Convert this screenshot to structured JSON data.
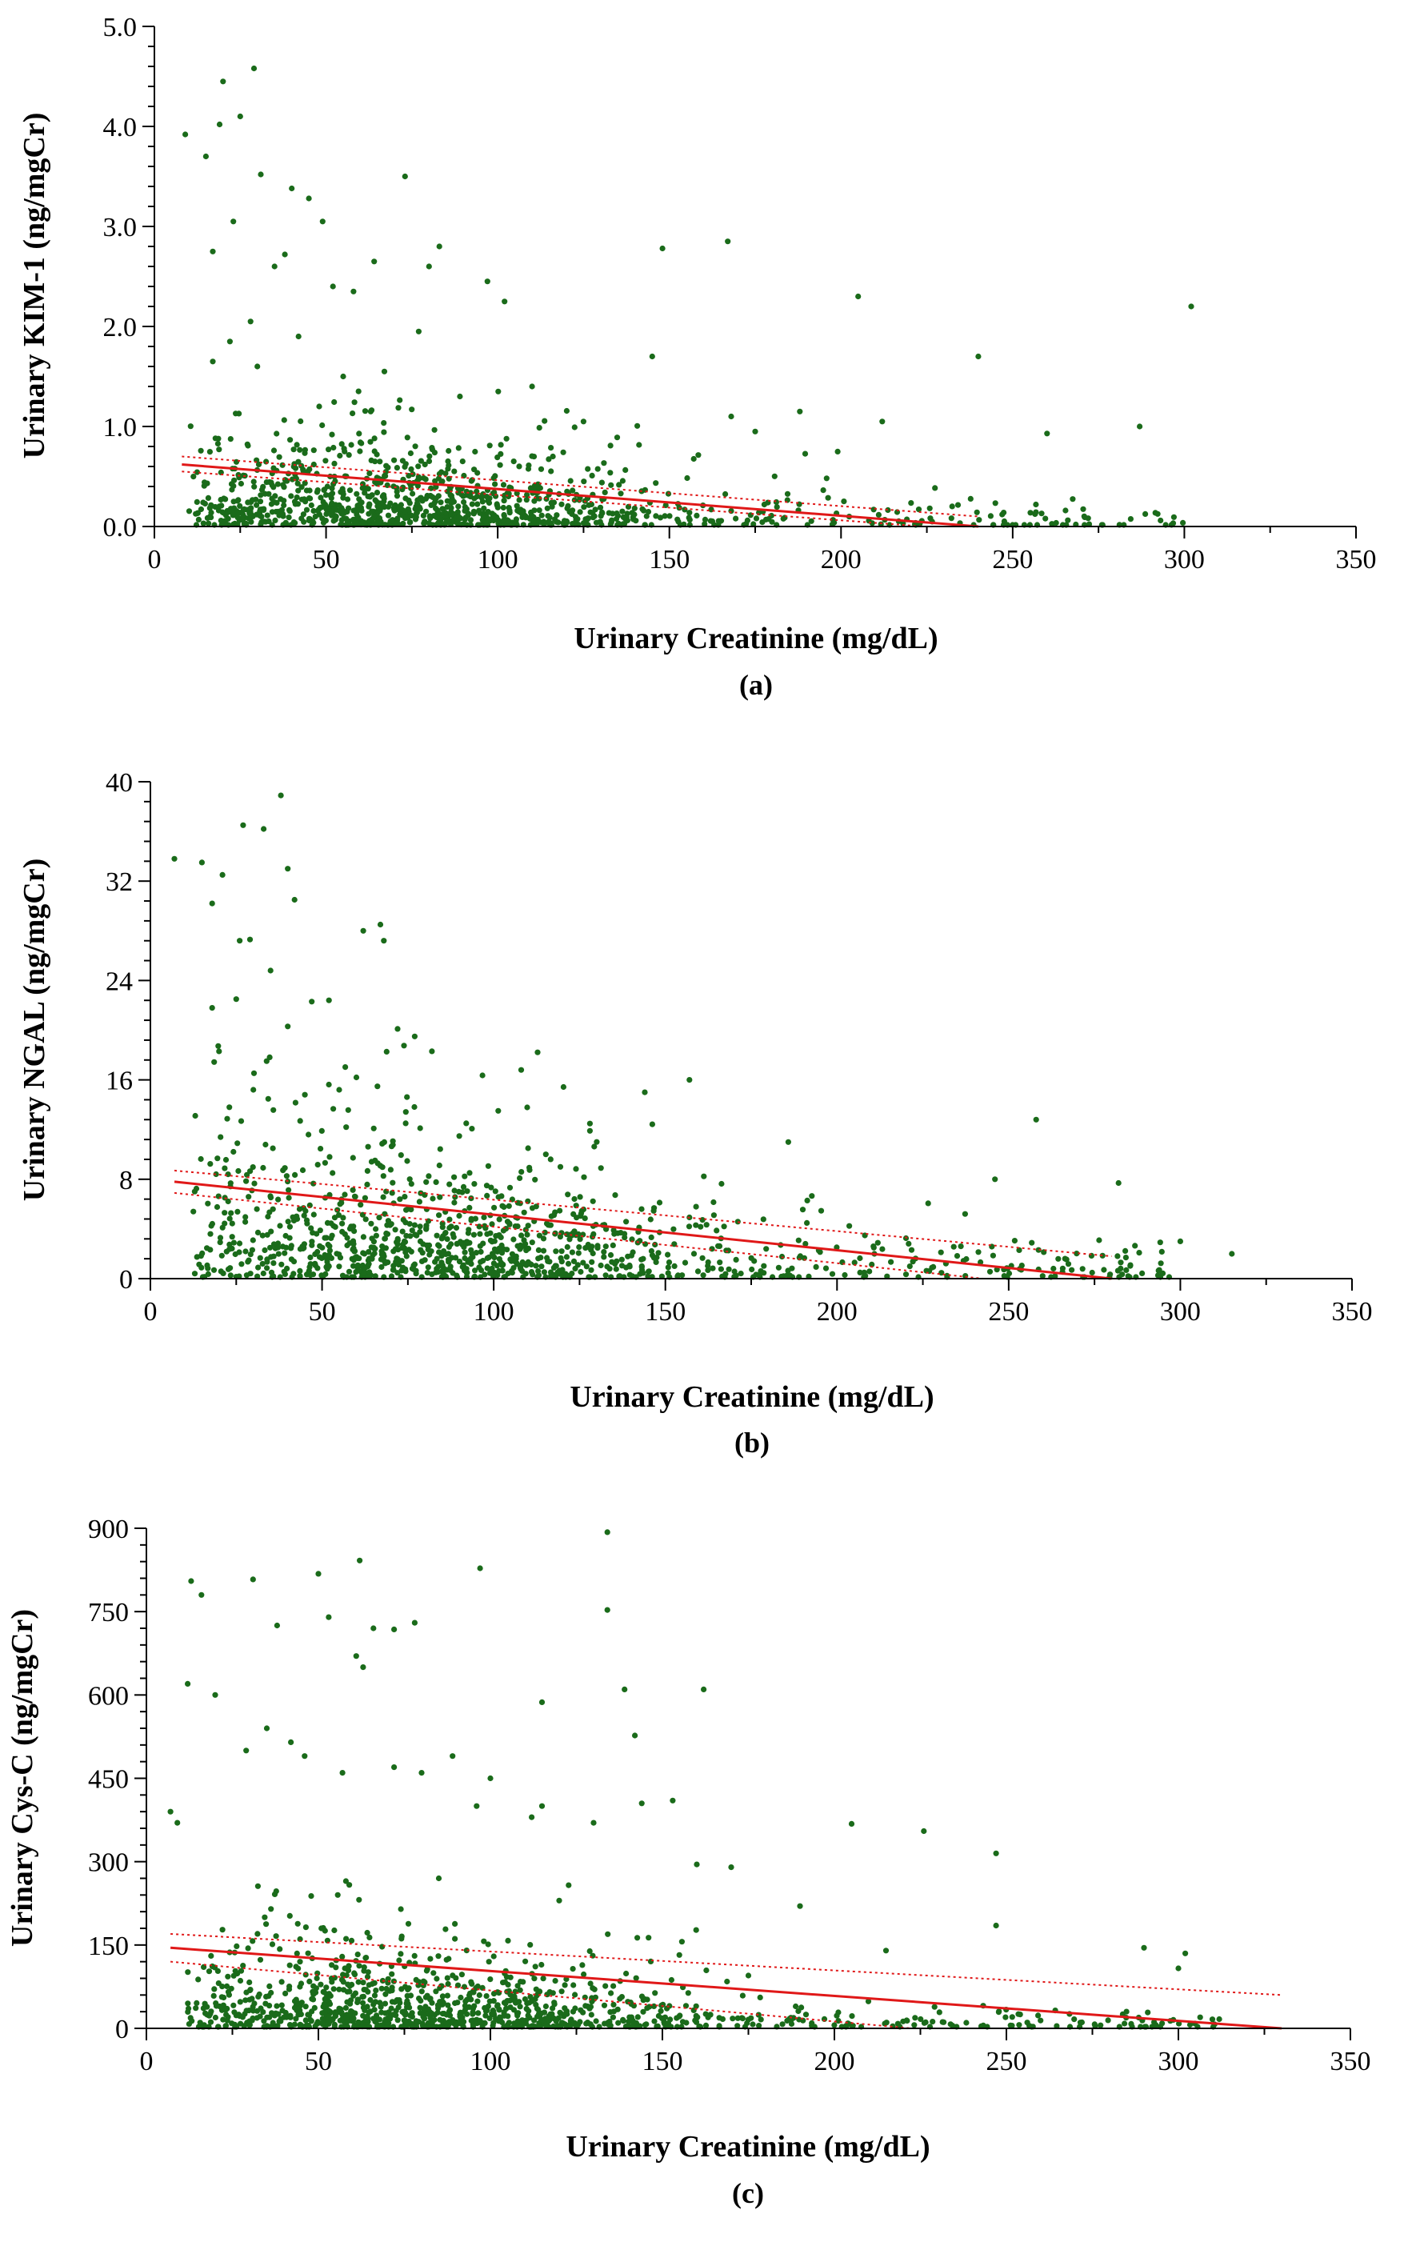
{
  "figure": {
    "panels": [
      {
        "label": "(a)"
      },
      {
        "label": "(b)"
      },
      {
        "label": "(c)"
      }
    ]
  },
  "colors": {
    "point": "#1a6b1a",
    "fit_line": "#e01818",
    "ci_line": "#e01818",
    "axis": "#000000"
  },
  "chart_data": [
    {
      "type": "scatter",
      "panel": "(a)",
      "title": "",
      "xlabel": "Urinary Creatinine (mg/dL)",
      "ylabel": "Urinary KIM-1 (ng/mgCr)",
      "xlim": [
        0,
        350
      ],
      "ylim": [
        0,
        5
      ],
      "xticks": [
        0,
        50,
        100,
        150,
        200,
        250,
        300,
        350
      ],
      "yticks": [
        0.0,
        1.0,
        2.0,
        3.0,
        4.0,
        5.0
      ],
      "xtick_labels": [
        "0",
        "50",
        "100",
        "150",
        "200",
        "250",
        "300",
        "350"
      ],
      "ytick_labels": [
        "0.0",
        "1.0",
        "2.0",
        "3.0",
        "4.0",
        "5.0"
      ],
      "points": [
        [
          9,
          3.92
        ],
        [
          15,
          3.7
        ],
        [
          20,
          4.45
        ],
        [
          19,
          4.02
        ],
        [
          25,
          4.1
        ],
        [
          29,
          4.58
        ],
        [
          31,
          3.52
        ],
        [
          17,
          2.75
        ],
        [
          23,
          3.05
        ],
        [
          40,
          3.38
        ],
        [
          45,
          3.28
        ],
        [
          49,
          3.05
        ],
        [
          73,
          3.5
        ],
        [
          83,
          2.8
        ],
        [
          102,
          2.25
        ],
        [
          145,
          1.7
        ],
        [
          148,
          2.78
        ],
        [
          167,
          2.85
        ],
        [
          205,
          2.3
        ],
        [
          240,
          1.7
        ],
        [
          302,
          2.2
        ],
        [
          260,
          0.93
        ],
        [
          287,
          1.0
        ],
        [
          212,
          1.05
        ],
        [
          188,
          1.15
        ],
        [
          175,
          0.95
        ],
        [
          168,
          1.1
        ],
        [
          125,
          1.05
        ],
        [
          110,
          1.4
        ],
        [
          97,
          2.45
        ],
        [
          80,
          2.6
        ],
        [
          64,
          2.65
        ],
        [
          58,
          2.35
        ],
        [
          52,
          2.4
        ],
        [
          38,
          2.72
        ],
        [
          35,
          2.6
        ],
        [
          28,
          2.05
        ],
        [
          22,
          1.85
        ],
        [
          17,
          1.65
        ],
        [
          30,
          1.6
        ],
        [
          42,
          1.9
        ],
        [
          55,
          1.5
        ],
        [
          67,
          1.55
        ],
        [
          77,
          1.95
        ],
        [
          89,
          1.3
        ],
        [
          63,
          1.15
        ],
        [
          48,
          1.2
        ]
      ],
      "point_cloud": [
        {
          "n": 950,
          "x_mean": 68,
          "x_sd": 40,
          "x_min": 10,
          "x_max": 235,
          "y_scale": 0.35,
          "y_max": 1.4
        },
        {
          "n": 170,
          "x_min": 90,
          "x_max": 300,
          "y_scale": 0.2,
          "y_max": 1.0
        }
      ],
      "fit": {
        "x": [
          8,
          240
        ],
        "y": [
          0.62,
          0.0
        ]
      },
      "ci_upper": {
        "x": [
          8,
          240
        ],
        "y": [
          0.7,
          0.1
        ]
      },
      "ci_lower": {
        "x": [
          8,
          240
        ],
        "y": [
          0.55,
          -0.04
        ]
      }
    },
    {
      "type": "scatter",
      "panel": "(b)",
      "title": "",
      "xlabel": "Urinary Creatinine (mg/dL)",
      "ylabel": "Urinary NGAL (ng/mgCr)",
      "xlim": [
        0,
        350
      ],
      "ylim": [
        0,
        40
      ],
      "xticks": [
        0,
        50,
        100,
        150,
        200,
        250,
        300,
        350
      ],
      "yticks": [
        0,
        8,
        16,
        24,
        32,
        40
      ],
      "xtick_labels": [
        "0",
        "50",
        "100",
        "150",
        "200",
        "250",
        "300",
        "350"
      ],
      "ytick_labels": [
        "0",
        "8",
        "16",
        "24",
        "32",
        "40"
      ],
      "points": [
        [
          7,
          33.8
        ],
        [
          15,
          33.5
        ],
        [
          18,
          30.2
        ],
        [
          21,
          32.5
        ],
        [
          27,
          36.5
        ],
        [
          33,
          36.2
        ],
        [
          38,
          38.9
        ],
        [
          40,
          33
        ],
        [
          42,
          30.5
        ],
        [
          26,
          27.2
        ],
        [
          29,
          27.3
        ],
        [
          62,
          28
        ],
        [
          67,
          28.5
        ],
        [
          68,
          27.2
        ],
        [
          25,
          22.5
        ],
        [
          35,
          24.8
        ],
        [
          47,
          22.3
        ],
        [
          52,
          22.4
        ],
        [
          18,
          21.8
        ],
        [
          40,
          20.3
        ],
        [
          20,
          18.3
        ],
        [
          30,
          15.2
        ],
        [
          60,
          16.2
        ],
        [
          72,
          20.1
        ],
        [
          77,
          19.5
        ],
        [
          82,
          18.3
        ],
        [
          108,
          16.8
        ],
        [
          144,
          15
        ],
        [
          157,
          16
        ],
        [
          258,
          12.8
        ],
        [
          246,
          8
        ],
        [
          282,
          7.7
        ],
        [
          300,
          3
        ],
        [
          315,
          2
        ],
        [
          23,
          13.8
        ],
        [
          45,
          14.8
        ],
        [
          55,
          15.2
        ],
        [
          92,
          12.5
        ],
        [
          130,
          11
        ],
        [
          110,
          10.5
        ]
      ],
      "point_cloud": [
        {
          "n": 900,
          "x_mean": 75,
          "x_sd": 45,
          "x_min": 12,
          "x_max": 270,
          "y_scale": 4.5,
          "y_max": 19
        },
        {
          "n": 220,
          "x_min": 100,
          "x_max": 300,
          "y_scale": 2.8,
          "y_max": 10
        }
      ],
      "fit": {
        "x": [
          7,
          280
        ],
        "y": [
          7.8,
          0.0
        ]
      },
      "ci_upper": {
        "x": [
          7,
          280
        ],
        "y": [
          8.7,
          1.8
        ]
      },
      "ci_lower": {
        "x": [
          7,
          280
        ],
        "y": [
          6.9,
          -1.1
        ]
      }
    },
    {
      "type": "scatter",
      "panel": "(c)",
      "title": "",
      "xlabel": "Urinary Creatinine (mg/dL)",
      "ylabel": "Urinary Cys-C (ng/mgCr)",
      "xlim": [
        0,
        350
      ],
      "ylim": [
        0,
        900
      ],
      "xticks": [
        0,
        50,
        100,
        150,
        200,
        250,
        300,
        350
      ],
      "yticks": [
        0,
        150,
        300,
        450,
        600,
        750,
        900
      ],
      "xtick_labels": [
        "0",
        "50",
        "100",
        "150",
        "200",
        "250",
        "300",
        "350"
      ],
      "ytick_labels": [
        "0",
        "150",
        "300",
        "450",
        "600",
        "750",
        "900"
      ],
      "points": [
        [
          134,
          893
        ],
        [
          50,
          818
        ],
        [
          13,
          805
        ],
        [
          31,
          808
        ],
        [
          62,
          842
        ],
        [
          97,
          828
        ],
        [
          134,
          753
        ],
        [
          16,
          780
        ],
        [
          38,
          725
        ],
        [
          53,
          740
        ],
        [
          66,
          720
        ],
        [
          78,
          730
        ],
        [
          72,
          718
        ],
        [
          12,
          620
        ],
        [
          20,
          600
        ],
        [
          61,
          670
        ],
        [
          63,
          650
        ],
        [
          115,
          587
        ],
        [
          139,
          610
        ],
        [
          162,
          610
        ],
        [
          142,
          527
        ],
        [
          35,
          540
        ],
        [
          42,
          515
        ],
        [
          29,
          500
        ],
        [
          46,
          490
        ],
        [
          57,
          460
        ],
        [
          72,
          470
        ],
        [
          80,
          460
        ],
        [
          89,
          490
        ],
        [
          100,
          450
        ],
        [
          115,
          400
        ],
        [
          112,
          380
        ],
        [
          96,
          400
        ],
        [
          130,
          370
        ],
        [
          144,
          405
        ],
        [
          153,
          410
        ],
        [
          7,
          390
        ],
        [
          9,
          370
        ],
        [
          205,
          368
        ],
        [
          226,
          355
        ],
        [
          247,
          315
        ],
        [
          290,
          145
        ],
        [
          300,
          108
        ],
        [
          302,
          135
        ],
        [
          247,
          185
        ],
        [
          215,
          140
        ],
        [
          175,
          95
        ],
        [
          190,
          220
        ],
        [
          160,
          295
        ],
        [
          170,
          290
        ],
        [
          120,
          230
        ],
        [
          85,
          270
        ],
        [
          58,
          265
        ]
      ],
      "point_cloud": [
        {
          "n": 950,
          "x_mean": 75,
          "x_sd": 42,
          "x_min": 12,
          "x_max": 260,
          "y_scale": 55,
          "y_max": 260
        },
        {
          "n": 170,
          "x_min": 100,
          "x_max": 315,
          "y_scale": 28,
          "y_max": 110
        }
      ],
      "fit": {
        "x": [
          7,
          330
        ],
        "y": [
          145,
          0
        ]
      },
      "ci_upper": {
        "x": [
          7,
          330
        ],
        "y": [
          170,
          60
        ]
      },
      "ci_lower": {
        "x": [
          7,
          330
        ],
        "y": [
          120,
          -60
        ]
      }
    }
  ]
}
